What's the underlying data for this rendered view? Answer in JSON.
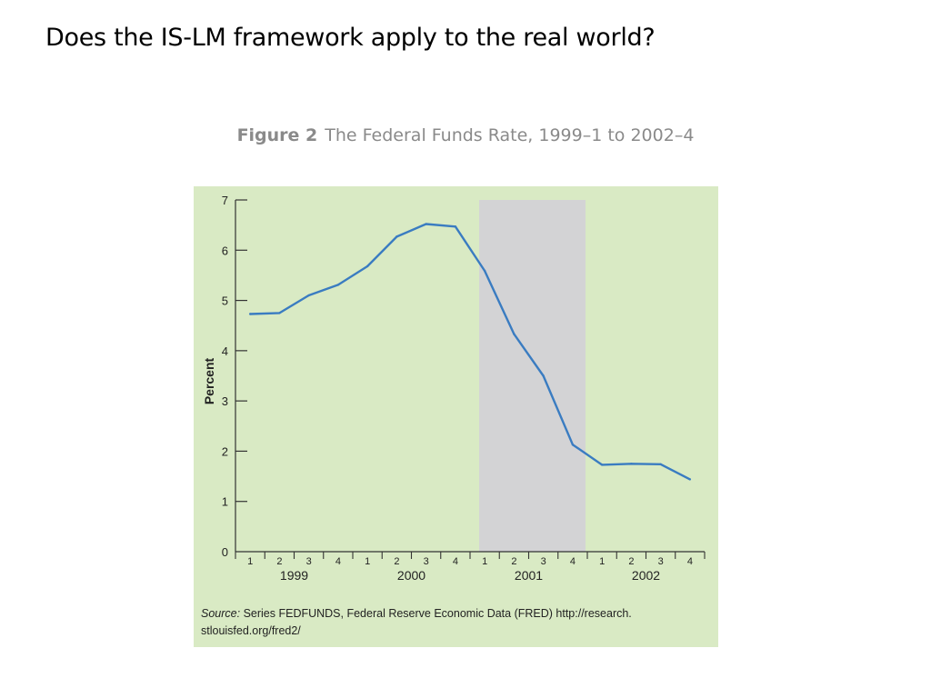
{
  "slide": {
    "title": "Does the IS-LM framework apply to the real world?"
  },
  "figure": {
    "number": "Figure 2",
    "caption": "The Federal Funds Rate, 1999–1 to 2002–4"
  },
  "chart_data": {
    "type": "line",
    "title": "The Federal Funds Rate, 1999–1 to 2002–4",
    "xlabel": "",
    "ylabel": "Percent",
    "ylim": [
      0,
      7
    ],
    "yticks": [
      0,
      1,
      2,
      3,
      4,
      5,
      6,
      7
    ],
    "years": [
      "1999",
      "2000",
      "2001",
      "2002"
    ],
    "quarter_labels": [
      "1",
      "2",
      "3",
      "4"
    ],
    "x": [
      "1999-1",
      "1999-2",
      "1999-3",
      "1999-4",
      "2000-1",
      "2000-2",
      "2000-3",
      "2000-4",
      "2001-1",
      "2001-2",
      "2001-3",
      "2001-4",
      "2002-1",
      "2002-2",
      "2002-3",
      "2002-4"
    ],
    "series": [
      {
        "values": [
          4.73,
          4.75,
          5.1,
          5.31,
          5.68,
          6.27,
          6.52,
          6.47,
          5.59,
          4.33,
          3.5,
          2.13,
          1.73,
          1.75,
          1.74,
          1.44
        ]
      }
    ],
    "shaded_region": {
      "from": "2001-1",
      "to": "2001-4"
    },
    "line_color": "#3a7cc1",
    "shade_color": "#d3d3d5",
    "background_color": "#d9eac4"
  },
  "source": {
    "label": "Source:",
    "text": " Series FEDFUNDS, Federal Reserve Economic Data (FRED) http://research. stlouisfed.org/fred2/"
  }
}
